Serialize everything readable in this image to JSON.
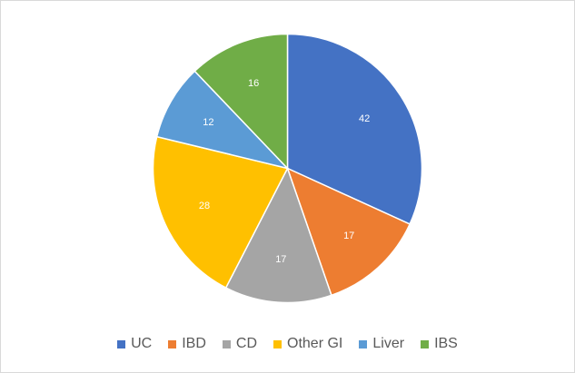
{
  "chart_data": {
    "type": "pie",
    "categories": [
      "UC",
      "IBD",
      "CD",
      "Other GI",
      "Liver",
      "IBS"
    ],
    "values": [
      42,
      17,
      17,
      28,
      12,
      16
    ],
    "colors": [
      "#4472C4",
      "#ED7D31",
      "#A5A5A5",
      "#FFC000",
      "#5B9BD5",
      "#70AD47"
    ],
    "data_labels": [
      "42",
      "17",
      "17",
      "28",
      "12",
      "16"
    ],
    "start_angle_deg": 0,
    "direction": "clockwise",
    "legend": "bottom",
    "title": ""
  }
}
